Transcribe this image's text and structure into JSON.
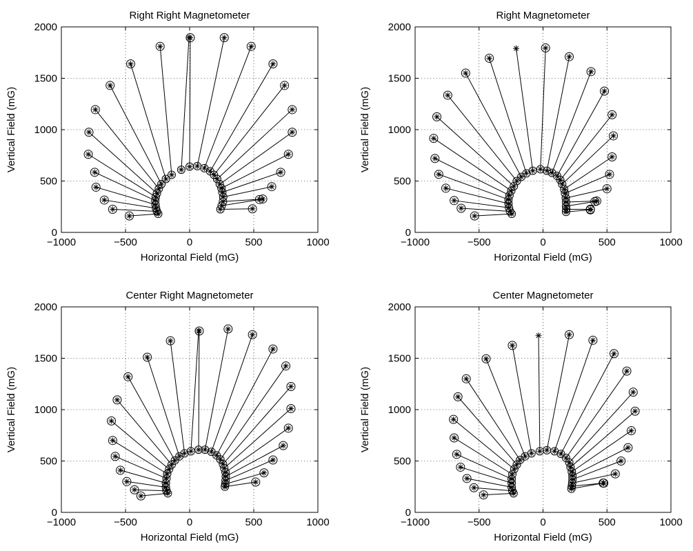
{
  "chart_data": [
    {
      "type": "scatter",
      "title": "Right Right Magnetometer",
      "xlabel": "Horizontal Field (mG)",
      "ylabel": "Vertical Field (mG)",
      "xlim": [
        -1000,
        1000
      ],
      "ylim": [
        0,
        2000
      ],
      "xticks": [
        -1000,
        -500,
        0,
        500,
        1000
      ],
      "yticks": [
        0,
        500,
        1000,
        1500,
        2000
      ],
      "xtick_labels": [
        "−1000",
        "−500",
        "0",
        "500",
        "1000"
      ],
      "ytick_labels": [
        "0",
        "500",
        "1000",
        "1500",
        "2000"
      ],
      "grid": true,
      "marker_open_end": "star",
      "marker_tip": "circle-star",
      "vectors": [
        {
          "start": [
            -245,
            180
          ],
          "end": [
            -470,
            160
          ]
        },
        {
          "start": [
            -255,
            205
          ],
          "end": [
            -600,
            225
          ]
        },
        {
          "start": [
            -262,
            235
          ],
          "end": [
            -665,
            315
          ]
        },
        {
          "start": [
            -266,
            270
          ],
          "end": [
            -730,
            440
          ]
        },
        {
          "start": [
            -268,
            310
          ],
          "end": [
            -740,
            585
          ]
        },
        {
          "start": [
            -264,
            345
          ],
          "end": [
            -790,
            760
          ]
        },
        {
          "start": [
            -255,
            380
          ],
          "end": [
            -785,
            975
          ]
        },
        {
          "start": [
            -240,
            425
          ],
          "end": [
            -735,
            1195
          ]
        },
        {
          "start": [
            -220,
            470
          ],
          "end": [
            -620,
            1430
          ]
        },
        {
          "start": [
            -185,
            520
          ],
          "end": [
            -460,
            1640
          ]
        },
        {
          "start": [
            -140,
            560
          ],
          "end": [
            -230,
            1810
          ],
          "highlight": false
        },
        {
          "start": [
            -65,
            610
          ],
          "end": [
            -5,
            1895
          ],
          "open_end": true
        },
        {
          "start": [
            0,
            640
          ],
          "end": [
            5,
            1895
          ]
        },
        {
          "start": [
            60,
            645
          ],
          "end": [
            270,
            1895
          ]
        },
        {
          "start": [
            115,
            625
          ],
          "end": [
            480,
            1810
          ]
        },
        {
          "start": [
            160,
            595
          ],
          "end": [
            650,
            1640
          ]
        },
        {
          "start": [
            190,
            560
          ],
          "end": [
            740,
            1430
          ]
        },
        {
          "start": [
            215,
            520
          ],
          "end": [
            800,
            1195
          ]
        },
        {
          "start": [
            235,
            470
          ],
          "end": [
            800,
            975
          ]
        },
        {
          "start": [
            248,
            430
          ],
          "end": [
            770,
            760
          ]
        },
        {
          "start": [
            255,
            390
          ],
          "end": [
            710,
            585
          ]
        },
        {
          "start": [
            262,
            345
          ],
          "end": [
            640,
            445
          ]
        },
        {
          "start": [
            260,
            300
          ],
          "end": [
            570,
            325
          ]
        },
        {
          "start": [
            250,
            260
          ],
          "end": [
            545,
            320
          ]
        },
        {
          "start": [
            240,
            225
          ],
          "end": [
            490,
            230
          ]
        }
      ]
    },
    {
      "type": "scatter",
      "title": "Right Magnetometer",
      "xlabel": "Horizontal Field (mG)",
      "ylabel": "Vertical Field (mG)",
      "xlim": [
        -1000,
        1000
      ],
      "ylim": [
        0,
        2000
      ],
      "xticks": [
        -1000,
        -500,
        0,
        500,
        1000
      ],
      "yticks": [
        0,
        500,
        1000,
        1500,
        2000
      ],
      "xtick_labels": [
        "−1000",
        "−500",
        "0",
        "500",
        "1000"
      ],
      "ytick_labels": [
        "0",
        "500",
        "1000",
        "1500",
        "2000"
      ],
      "grid": true,
      "marker_open_end": "star",
      "marker_tip": "circle-star",
      "vectors": [
        {
          "start": [
            -245,
            180
          ],
          "end": [
            -535,
            160
          ]
        },
        {
          "start": [
            -258,
            205
          ],
          "end": [
            -640,
            235
          ]
        },
        {
          "start": [
            -266,
            240
          ],
          "end": [
            -695,
            310
          ]
        },
        {
          "start": [
            -270,
            280
          ],
          "end": [
            -760,
            430
          ]
        },
        {
          "start": [
            -270,
            320
          ],
          "end": [
            -815,
            565
          ]
        },
        {
          "start": [
            -262,
            360
          ],
          "end": [
            -845,
            720
          ]
        },
        {
          "start": [
            -248,
            405
          ],
          "end": [
            -855,
            915
          ]
        },
        {
          "start": [
            -228,
            450
          ],
          "end": [
            -830,
            1125
          ]
        },
        {
          "start": [
            -205,
            500
          ],
          "end": [
            -745,
            1335
          ]
        },
        {
          "start": [
            -170,
            540
          ],
          "end": [
            -605,
            1550
          ]
        },
        {
          "start": [
            -130,
            575
          ],
          "end": [
            -420,
            1695
          ]
        },
        {
          "start": [
            -80,
            600
          ],
          "end": [
            -210,
            1790
          ],
          "open_end": true
        },
        {
          "start": [
            -20,
            615
          ],
          "end": [
            20,
            1795
          ]
        },
        {
          "start": [
            30,
            600
          ],
          "end": [
            205,
            1710
          ]
        },
        {
          "start": [
            70,
            580
          ],
          "end": [
            375,
            1565
          ]
        },
        {
          "start": [
            110,
            550
          ],
          "end": [
            480,
            1375
          ]
        },
        {
          "start": [
            135,
            510
          ],
          "end": [
            540,
            1145
          ]
        },
        {
          "start": [
            150,
            470
          ],
          "end": [
            550,
            940
          ]
        },
        {
          "start": [
            165,
            420
          ],
          "end": [
            540,
            735
          ]
        },
        {
          "start": [
            172,
            380
          ],
          "end": [
            520,
            565
          ]
        },
        {
          "start": [
            178,
            335
          ],
          "end": [
            500,
            425
          ]
        },
        {
          "start": [
            180,
            295
          ],
          "end": [
            420,
            305
          ]
        },
        {
          "start": [
            180,
            255
          ],
          "end": [
            405,
            300
          ]
        },
        {
          "start": [
            182,
            225
          ],
          "end": [
            370,
            225
          ]
        },
        {
          "start": [
            180,
            200
          ],
          "end": [
            370,
            220
          ]
        }
      ]
    },
    {
      "type": "scatter",
      "title": "Center Right Magnetometer",
      "xlabel": "Horizontal Field (mG)",
      "ylabel": "Vertical Field (mG)",
      "xlim": [
        -1000,
        1000
      ],
      "ylim": [
        0,
        2000
      ],
      "xticks": [
        -1000,
        -500,
        0,
        500,
        1000
      ],
      "yticks": [
        0,
        500,
        1000,
        1500,
        2000
      ],
      "xtick_labels": [
        "−1000",
        "−500",
        "0",
        "500",
        "1000"
      ],
      "ytick_labels": [
        "0",
        "500",
        "1000",
        "1500",
        "2000"
      ],
      "grid": true,
      "marker_open_end": "star",
      "marker_tip": "circle-star",
      "vectors": [
        {
          "start": [
            -170,
            185
          ],
          "end": [
            -380,
            160
          ]
        },
        {
          "start": [
            -180,
            210
          ],
          "end": [
            -430,
            220
          ]
        },
        {
          "start": [
            -185,
            245
          ],
          "end": [
            -490,
            300
          ]
        },
        {
          "start": [
            -185,
            285
          ],
          "end": [
            -540,
            410
          ]
        },
        {
          "start": [
            -180,
            330
          ],
          "end": [
            -580,
            545
          ]
        },
        {
          "start": [
            -175,
            375
          ],
          "end": [
            -600,
            700
          ]
        },
        {
          "start": [
            -160,
            420
          ],
          "end": [
            -610,
            890
          ]
        },
        {
          "start": [
            -140,
            465
          ],
          "end": [
            -565,
            1095
          ]
        },
        {
          "start": [
            -115,
            505
          ],
          "end": [
            -480,
            1320
          ]
        },
        {
          "start": [
            -80,
            545
          ],
          "end": [
            -330,
            1510
          ]
        },
        {
          "start": [
            -40,
            575
          ],
          "end": [
            -150,
            1670
          ]
        },
        {
          "start": [
            10,
            595
          ],
          "end": [
            70,
            1765
          ],
          "open_end": true
        },
        {
          "start": [
            70,
            610
          ],
          "end": [
            75,
            1765
          ]
        },
        {
          "start": [
            120,
            610
          ],
          "end": [
            300,
            1785
          ]
        },
        {
          "start": [
            170,
            590
          ],
          "end": [
            490,
            1730
          ]
        },
        {
          "start": [
            210,
            555
          ],
          "end": [
            650,
            1590
          ]
        },
        {
          "start": [
            240,
            515
          ],
          "end": [
            750,
            1425
          ]
        },
        {
          "start": [
            260,
            470
          ],
          "end": [
            790,
            1225
          ]
        },
        {
          "start": [
            270,
            430
          ],
          "end": [
            790,
            1010
          ]
        },
        {
          "start": [
            280,
            390
          ],
          "end": [
            770,
            820
          ]
        },
        {
          "start": [
            282,
            350
          ],
          "end": [
            730,
            650
          ]
        },
        {
          "start": [
            280,
            310
          ],
          "end": [
            650,
            510
          ]
        },
        {
          "start": [
            278,
            275
          ],
          "end": [
            580,
            385
          ]
        },
        {
          "start": [
            275,
            250
          ],
          "end": [
            515,
            295
          ]
        }
      ]
    },
    {
      "type": "scatter",
      "title": "Center Magnetometer",
      "xlabel": "Horizontal Field (mG)",
      "ylabel": "Vertical Field (mG)",
      "xlim": [
        -1000,
        1000
      ],
      "ylim": [
        0,
        2000
      ],
      "xticks": [
        -1000,
        -500,
        0,
        500,
        1000
      ],
      "yticks": [
        0,
        500,
        1000,
        1500,
        2000
      ],
      "xtick_labels": [
        "−1000",
        "−500",
        "0",
        "500",
        "1000"
      ],
      "ytick_labels": [
        "0",
        "500",
        "1000",
        "1500",
        "2000"
      ],
      "grid": true,
      "marker_open_end": "star",
      "marker_tip": "circle-star",
      "vectors": [
        {
          "start": [
            -230,
            185
          ],
          "end": [
            -465,
            170
          ]
        },
        {
          "start": [
            -240,
            210
          ],
          "end": [
            -540,
            240
          ]
        },
        {
          "start": [
            -245,
            245
          ],
          "end": [
            -595,
            330
          ]
        },
        {
          "start": [
            -245,
            285
          ],
          "end": [
            -645,
            440
          ]
        },
        {
          "start": [
            -245,
            325
          ],
          "end": [
            -675,
            565
          ]
        },
        {
          "start": [
            -240,
            370
          ],
          "end": [
            -695,
            725
          ]
        },
        {
          "start": [
            -225,
            420
          ],
          "end": [
            -700,
            905
          ]
        },
        {
          "start": [
            -205,
            465
          ],
          "end": [
            -665,
            1125
          ]
        },
        {
          "start": [
            -180,
            510
          ],
          "end": [
            -600,
            1300
          ]
        },
        {
          "start": [
            -140,
            545
          ],
          "end": [
            -445,
            1495
          ]
        },
        {
          "start": [
            -90,
            575
          ],
          "end": [
            -240,
            1625
          ]
        },
        {
          "start": [
            -25,
            595
          ],
          "end": [
            -35,
            1720
          ],
          "open_end": true
        },
        {
          "start": [
            30,
            605
          ],
          "end": [
            205,
            1730
          ]
        },
        {
          "start": [
            90,
            595
          ],
          "end": [
            390,
            1675
          ]
        },
        {
          "start": [
            140,
            570
          ],
          "end": [
            555,
            1545
          ]
        },
        {
          "start": [
            180,
            530
          ],
          "end": [
            655,
            1375
          ]
        },
        {
          "start": [
            205,
            485
          ],
          "end": [
            705,
            1170
          ]
        },
        {
          "start": [
            215,
            440
          ],
          "end": [
            720,
            985
          ]
        },
        {
          "start": [
            225,
            395
          ],
          "end": [
            690,
            795
          ]
        },
        {
          "start": [
            230,
            355
          ],
          "end": [
            665,
            630
          ]
        },
        {
          "start": [
            230,
            320
          ],
          "end": [
            610,
            500
          ]
        },
        {
          "start": [
            228,
            285
          ],
          "end": [
            565,
            375
          ]
        },
        {
          "start": [
            225,
            255
          ],
          "end": [
            475,
            285
          ]
        },
        {
          "start": [
            222,
            230
          ],
          "end": [
            470,
            285
          ]
        }
      ]
    }
  ]
}
